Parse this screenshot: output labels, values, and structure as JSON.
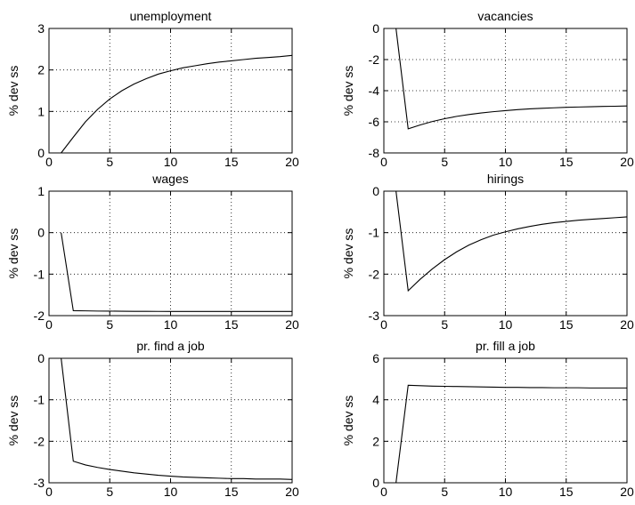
{
  "chart_data": [
    {
      "type": "line",
      "title": "unemployment",
      "xlabel": "",
      "ylabel": "% dev ss",
      "xlim": [
        0,
        20
      ],
      "ylim": [
        0,
        3
      ],
      "xticks": [
        "0",
        "5",
        "10",
        "15",
        "20"
      ],
      "yticks": [
        "0",
        "1",
        "2",
        "3"
      ],
      "grid": true,
      "x": [
        1,
        2,
        3,
        4,
        5,
        6,
        7,
        8,
        9,
        10,
        11,
        12,
        13,
        14,
        15,
        16,
        17,
        18,
        19,
        20
      ],
      "series": [
        {
          "values": [
            0.0,
            0.38,
            0.75,
            1.05,
            1.3,
            1.5,
            1.66,
            1.79,
            1.9,
            1.98,
            2.05,
            2.1,
            2.15,
            2.19,
            2.22,
            2.25,
            2.28,
            2.3,
            2.32,
            2.35
          ]
        }
      ]
    },
    {
      "type": "line",
      "title": "vacancies",
      "xlabel": "",
      "ylabel": "% dev ss",
      "xlim": [
        0,
        20
      ],
      "ylim": [
        -8,
        0
      ],
      "xticks": [
        "0",
        "5",
        "10",
        "15",
        "20"
      ],
      "yticks": [
        "-8",
        "-6",
        "-4",
        "-2",
        "0"
      ],
      "grid": true,
      "x": [
        1,
        2,
        3,
        4,
        5,
        6,
        7,
        8,
        9,
        10,
        11,
        12,
        13,
        14,
        15,
        16,
        17,
        18,
        19,
        20
      ],
      "series": [
        {
          "values": [
            0.0,
            -6.45,
            -6.2,
            -5.98,
            -5.8,
            -5.65,
            -5.53,
            -5.43,
            -5.35,
            -5.28,
            -5.22,
            -5.17,
            -5.13,
            -5.1,
            -5.07,
            -5.05,
            -5.03,
            -5.01,
            -5.0,
            -4.98
          ]
        }
      ]
    },
    {
      "type": "line",
      "title": "wages",
      "xlabel": "",
      "ylabel": "% dev ss",
      "xlim": [
        0,
        20
      ],
      "ylim": [
        -2,
        1
      ],
      "xticks": [
        "0",
        "5",
        "10",
        "15",
        "20"
      ],
      "yticks": [
        "-2",
        "-1",
        "0",
        "1"
      ],
      "grid": true,
      "x": [
        1,
        2,
        3,
        4,
        5,
        6,
        7,
        8,
        9,
        10,
        11,
        12,
        13,
        14,
        15,
        16,
        17,
        18,
        19,
        20
      ],
      "series": [
        {
          "values": [
            0.0,
            -1.88,
            -1.885,
            -1.89,
            -1.892,
            -1.894,
            -1.896,
            -1.897,
            -1.898,
            -1.899,
            -1.9,
            -1.9,
            -1.9,
            -1.9,
            -1.9,
            -1.9,
            -1.9,
            -1.9,
            -1.9,
            -1.9
          ]
        }
      ]
    },
    {
      "type": "line",
      "title": "hirings",
      "xlabel": "",
      "ylabel": "% dev ss",
      "xlim": [
        0,
        20
      ],
      "ylim": [
        -3,
        0
      ],
      "xticks": [
        "0",
        "5",
        "10",
        "15",
        "20"
      ],
      "yticks": [
        "-3",
        "-2",
        "-1",
        "0"
      ],
      "grid": true,
      "x": [
        1,
        2,
        3,
        4,
        5,
        6,
        7,
        8,
        9,
        10,
        11,
        12,
        13,
        14,
        15,
        16,
        17,
        18,
        19,
        20
      ],
      "series": [
        {
          "values": [
            0.0,
            -2.4,
            -2.12,
            -1.87,
            -1.65,
            -1.46,
            -1.3,
            -1.17,
            -1.06,
            -0.98,
            -0.91,
            -0.85,
            -0.8,
            -0.76,
            -0.73,
            -0.7,
            -0.68,
            -0.66,
            -0.64,
            -0.62
          ]
        }
      ]
    },
    {
      "type": "line",
      "title": "pr. find a job",
      "xlabel": "",
      "ylabel": "% dev ss",
      "xlim": [
        0,
        20
      ],
      "ylim": [
        -3,
        0
      ],
      "xticks": [
        "0",
        "5",
        "10",
        "15",
        "20"
      ],
      "yticks": [
        "-3",
        "-2",
        "-1",
        "0"
      ],
      "grid": true,
      "x": [
        1,
        2,
        3,
        4,
        5,
        6,
        7,
        8,
        9,
        10,
        11,
        12,
        13,
        14,
        15,
        16,
        17,
        18,
        19,
        20
      ],
      "series": [
        {
          "values": [
            0.0,
            -2.48,
            -2.57,
            -2.63,
            -2.68,
            -2.72,
            -2.76,
            -2.79,
            -2.82,
            -2.84,
            -2.86,
            -2.87,
            -2.88,
            -2.89,
            -2.9,
            -2.9,
            -2.91,
            -2.91,
            -2.91,
            -2.92
          ]
        }
      ]
    },
    {
      "type": "line",
      "title": "pr. fill a job",
      "xlabel": "",
      "ylabel": "% dev ss",
      "xlim": [
        0,
        20
      ],
      "ylim": [
        0,
        6
      ],
      "xticks": [
        "0",
        "5",
        "10",
        "15",
        "20"
      ],
      "yticks": [
        "0",
        "2",
        "4",
        "6"
      ],
      "grid": true,
      "x": [
        1,
        2,
        3,
        4,
        5,
        6,
        7,
        8,
        9,
        10,
        11,
        12,
        13,
        14,
        15,
        16,
        17,
        18,
        19,
        20
      ],
      "series": [
        {
          "values": [
            0.0,
            4.7,
            4.68,
            4.66,
            4.65,
            4.64,
            4.63,
            4.62,
            4.61,
            4.6,
            4.6,
            4.59,
            4.59,
            4.58,
            4.58,
            4.58,
            4.57,
            4.57,
            4.57,
            4.57
          ]
        }
      ]
    }
  ]
}
